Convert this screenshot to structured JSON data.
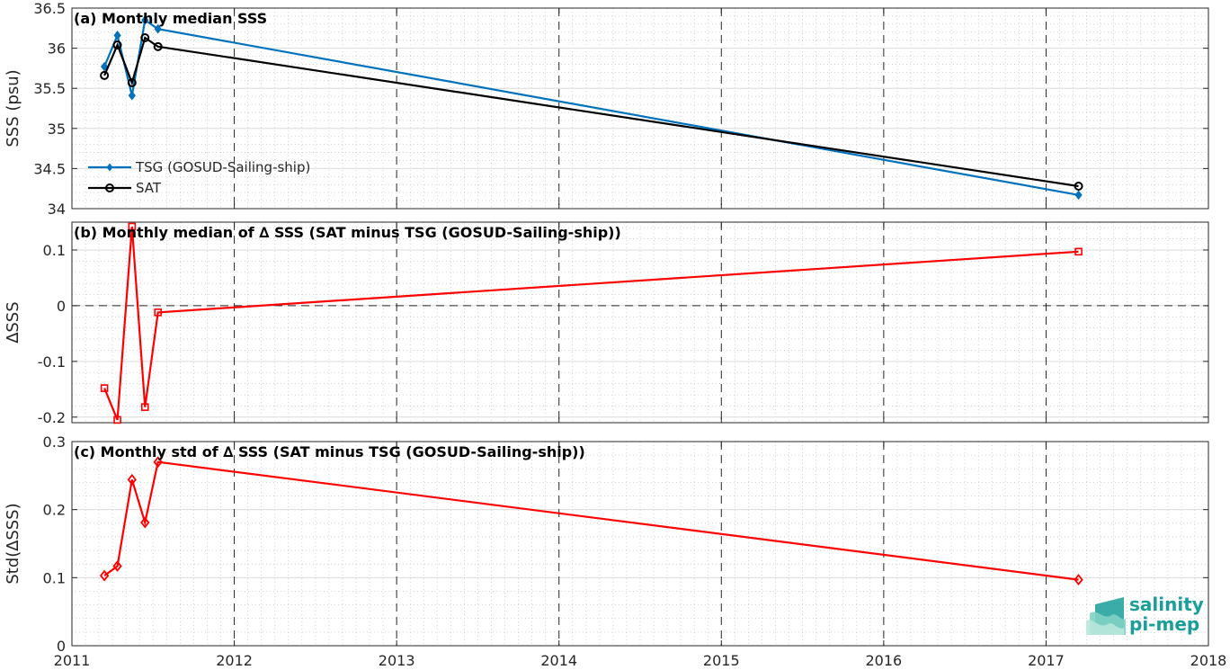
{
  "chart_data": [
    {
      "id": "a",
      "type": "line",
      "title": "(a) Monthly median SSS",
      "ylabel": "SSS (psu)",
      "xlim": [
        2011,
        2018
      ],
      "ylim": [
        34,
        36.5
      ],
      "yticks": [
        "34",
        "34.5",
        "35",
        "35.5",
        "36",
        "36.5"
      ],
      "legend_position": "lower-left",
      "series": [
        {
          "name": "TSG (GOSUD-Sailing-ship)",
          "color": "#0072BD",
          "marker": "diamond-filled",
          "x": [
            2011.2,
            2011.28,
            2011.37,
            2011.45,
            2011.53,
            2017.2
          ],
          "y": [
            35.77,
            36.16,
            35.41,
            36.35,
            36.24,
            34.17
          ]
        },
        {
          "name": "SAT",
          "color": "#000000",
          "marker": "circle",
          "x": [
            2011.2,
            2011.28,
            2011.37,
            2011.45,
            2011.53,
            2017.2
          ],
          "y": [
            35.66,
            36.04,
            35.57,
            36.13,
            36.02,
            34.28
          ]
        }
      ]
    },
    {
      "id": "b",
      "type": "line",
      "title": "(b) Monthly median of ∆ SSS (SAT minus TSG (GOSUD-Sailing-ship))",
      "ylabel": "∆SSS",
      "xlim": [
        2011,
        2018
      ],
      "ylim": [
        -0.21,
        0.15
      ],
      "yticks": [
        "-0.2",
        "-0.1",
        "0",
        "0.1"
      ],
      "ytick_values": [
        -0.2,
        -0.1,
        0,
        0.1
      ],
      "zero_line": true,
      "series": [
        {
          "color": "#FF0000",
          "marker": "square",
          "x": [
            2011.2,
            2011.28,
            2011.37,
            2011.45,
            2011.53,
            2017.2
          ],
          "y": [
            -0.148,
            -0.205,
            0.142,
            -0.182,
            -0.012,
            0.097
          ]
        }
      ]
    },
    {
      "id": "c",
      "type": "line",
      "title": "(c) Monthly std of ∆ SSS (SAT minus TSG (GOSUD-Sailing-ship))",
      "ylabel": "Std(∆SSS)",
      "xlim": [
        2011,
        2018
      ],
      "ylim": [
        0,
        0.3
      ],
      "yticks": [
        "0",
        "0.1",
        "0.2",
        "0.3"
      ],
      "ytick_values": [
        0,
        0.1,
        0.2,
        0.3
      ],
      "xticks": [
        "2011",
        "2012",
        "2013",
        "2014",
        "2015",
        "2016",
        "2017",
        "2018"
      ],
      "series": [
        {
          "color": "#FF0000",
          "marker": "diamond",
          "x": [
            2011.2,
            2011.28,
            2011.37,
            2011.45,
            2011.53,
            2017.2
          ],
          "y": [
            0.103,
            0.117,
            0.244,
            0.181,
            0.27,
            0.097
          ]
        }
      ]
    }
  ],
  "logo": {
    "line1": "salinity",
    "line2": "pi-mep",
    "color": "#1a9e9a"
  }
}
